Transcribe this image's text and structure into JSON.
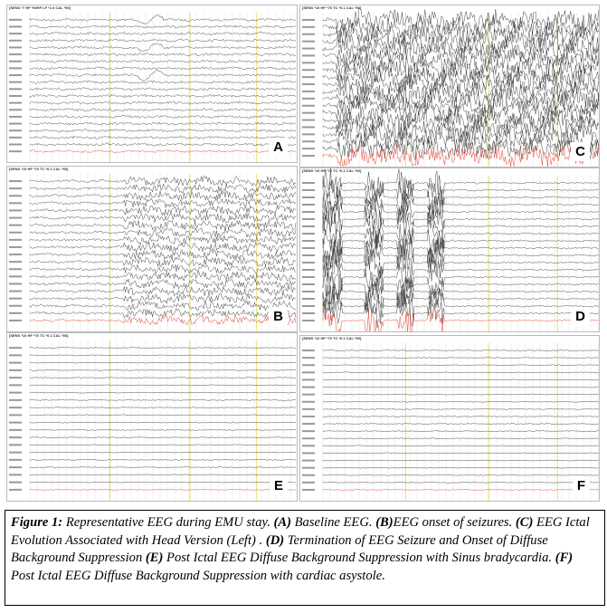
{
  "panels": [
    {
      "id": "A",
      "header": "[SENS *7 HF *50HF LF *1.6 CAL *50]",
      "state": "baseline"
    },
    {
      "id": "C",
      "header": "[SENS *10 HF *70 TC *0.1 CAL *50]",
      "state": "ictal-dense"
    },
    {
      "id": "B",
      "header": "[SENS *10 HF *70 TC *0.1 CAL *50]",
      "state": "onset"
    },
    {
      "id": "D",
      "header": "[SENS *10 HF *70 TC *0.1 CAL *50]",
      "state": "termination"
    },
    {
      "id": "E",
      "header": "[SENS *10 HF *70 TC *0.1 CAL *50]",
      "state": "suppression"
    },
    {
      "id": "F",
      "header": "[SENS *10 HF *70 TC *0.1 CAL *50]",
      "state": "suppression"
    }
  ],
  "caption": {
    "figure_label": "Figure 1:",
    "intro": " Representative EEG during EMU stay. ",
    "a_label": "(A)",
    "a_text": " Baseline EEG. ",
    "b_label": "(B)",
    "b_text": "EEG onset of seizures. ",
    "c_label": "(C)",
    "c_text": "  EEG Ictal Evolution Associated with Head Version (Left) . ",
    "d_label": "(D)",
    "d_text": " Termination of EEG Seizure and Onset of Diffuse Background Suppression  ",
    "e_label": "(E)",
    "e_text": " Post Ictal EEG Diffuse Background Suppression with Sinus bradycardia. ",
    "f_label": "(F)",
    "f_text": " Post Ictal EEG Diffuse Background Suppression with cardiac asystole."
  },
  "colors": {
    "trace": "#333333",
    "ecg": "#e03020",
    "marker": "#e8d84a",
    "grid": "#dddddd"
  }
}
